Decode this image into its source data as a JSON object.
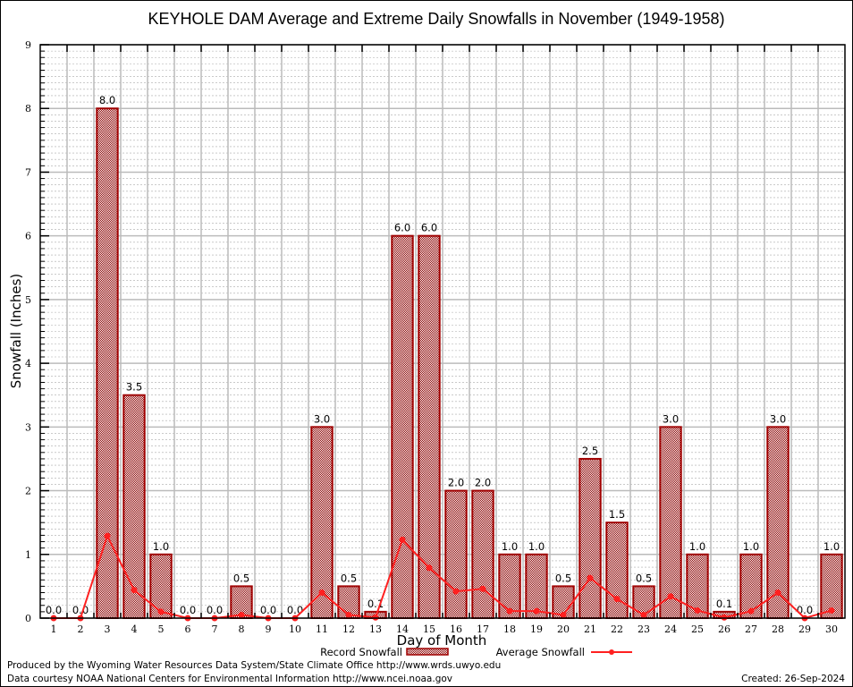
{
  "chart_data": {
    "type": "bar",
    "title": "KEYHOLE DAM Average and Extreme Daily Snowfalls in November (1949-1958)",
    "xlabel": "Day of Month",
    "ylabel": "Snowfall (Inches)",
    "ylim": [
      0,
      9
    ],
    "yticks": [
      "0",
      "1",
      "2",
      "3",
      "4",
      "5",
      "6",
      "7",
      "8",
      "9"
    ],
    "grid": true,
    "legend_position": "bottom-center",
    "categories": [
      "1",
      "2",
      "3",
      "4",
      "5",
      "6",
      "7",
      "8",
      "9",
      "10",
      "11",
      "12",
      "13",
      "14",
      "15",
      "16",
      "17",
      "18",
      "19",
      "20",
      "21",
      "22",
      "23",
      "24",
      "25",
      "26",
      "27",
      "28",
      "29",
      "30"
    ],
    "series": [
      {
        "name": "Record Snowfall",
        "type": "bar",
        "color": "#a00000",
        "values": [
          0.0,
          0.0,
          8.0,
          3.5,
          1.0,
          0.0,
          0.0,
          0.5,
          0.0,
          0.0,
          3.0,
          0.5,
          0.1,
          6.0,
          6.0,
          2.0,
          2.0,
          1.0,
          1.0,
          0.5,
          2.5,
          1.5,
          0.5,
          3.0,
          1.0,
          0.1,
          1.0,
          3.0,
          0.0,
          1.0
        ],
        "labels": [
          "0.0",
          "0.0",
          "8.0",
          "3.5",
          "1.0",
          "0.0",
          "0.0",
          "0.5",
          "0.0",
          "0.0",
          "3.0",
          "0.5",
          "0.1",
          "6.0",
          "6.0",
          "2.0",
          "2.0",
          "1.0",
          "1.0",
          "0.5",
          "2.5",
          "1.5",
          "0.5",
          "3.0",
          "1.0",
          "0.1",
          "1.0",
          "3.0",
          "0.0",
          "1.0"
        ]
      },
      {
        "name": "Average Snowfall",
        "type": "line",
        "color": "#ff2020",
        "values": [
          0.0,
          0.0,
          1.29,
          0.44,
          0.1,
          0.0,
          0.0,
          0.05,
          0.0,
          0.0,
          0.4,
          0.05,
          0.01,
          1.23,
          0.79,
          0.42,
          0.46,
          0.11,
          0.11,
          0.05,
          0.63,
          0.3,
          0.05,
          0.34,
          0.12,
          0.01,
          0.11,
          0.4,
          0.0,
          0.12
        ]
      }
    ]
  },
  "footer": {
    "produced_by": "Produced by the Wyoming Water Resources Data System/State Climate Office http://www.wrds.uwyo.edu",
    "courtesy": "Data courtesy NOAA National Centers for Environmental Information http://www.ncei.noaa.gov",
    "created": "Created:  26-Sep-2024"
  }
}
